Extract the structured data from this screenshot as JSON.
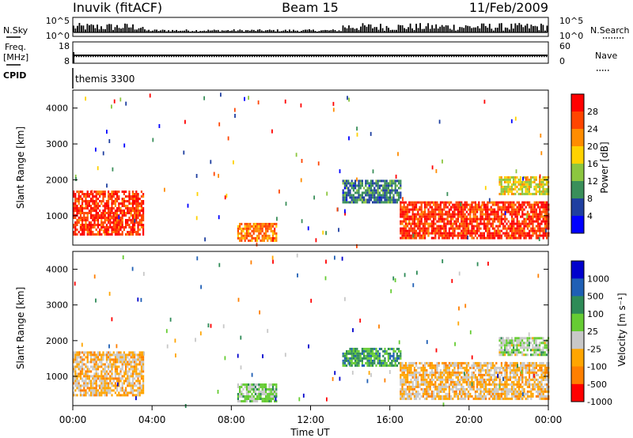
{
  "header": {
    "station": "Inuvik (fitACF)",
    "beam": "Beam 15",
    "date": "11/Feb/2009"
  },
  "summary_panels": {
    "nsky": {
      "label": "N.Sky",
      "ticks": [
        "10^5",
        "10^0"
      ]
    },
    "nsearch": {
      "label": "N.Search",
      "ticks": [
        "10^5",
        "10^0"
      ]
    },
    "freq": {
      "label_top": "Freq.",
      "label_bottom": "[MHz]",
      "ticks": [
        "18",
        "8"
      ]
    },
    "nave": {
      "label": "Nave",
      "ticks": [
        "60",
        "0"
      ]
    },
    "cpid": {
      "label": "CPID",
      "value": "themis 3300"
    }
  },
  "colors": {
    "power_scale": [
      "#0000ff",
      "#1f3fa0",
      "#3a8f5a",
      "#8cc63f",
      "#ffd200",
      "#ff8c00",
      "#ff4500",
      "#ff0000"
    ],
    "velocity_scale": [
      "#0000cc",
      "#1f5fb5",
      "#2e8b57",
      "#66cc33",
      "#c8c8c8",
      "#ffa500",
      "#ff7f00",
      "#ff0000"
    ]
  },
  "chart_data": [
    {
      "type": "heatmap",
      "title": "",
      "xlabel": "",
      "ylabel": "Slant Range [km]",
      "x_ticks": [
        "00:00",
        "04:00",
        "08:00",
        "12:00",
        "16:00",
        "20:00",
        "00:00"
      ],
      "y_ticks": [
        "1000",
        "2000",
        "3000",
        "4000"
      ],
      "ylim": [
        180,
        4500
      ],
      "xlim": [
        0,
        24
      ],
      "colorbar": {
        "label": "Power [dB]",
        "ticks": [
          "4",
          "8",
          "12",
          "16",
          "20",
          "24",
          "28"
        ],
        "range": [
          0,
          30
        ]
      },
      "regions": [
        {
          "t_start": 0.0,
          "t_end": 3.6,
          "r_start": 500,
          "r_end": 1700,
          "value": 26
        },
        {
          "t_start": 8.3,
          "t_end": 10.3,
          "r_start": 300,
          "r_end": 800,
          "value": 22
        },
        {
          "t_start": 13.6,
          "t_end": 16.5,
          "r_start": 1400,
          "r_end": 2000,
          "value": 8
        },
        {
          "t_start": 16.5,
          "t_end": 24.0,
          "r_start": 400,
          "r_end": 1400,
          "value": 26
        },
        {
          "t_start": 21.5,
          "t_end": 24.0,
          "r_start": 1600,
          "r_end": 2100,
          "value": 16
        }
      ]
    },
    {
      "type": "heatmap",
      "title": "",
      "xlabel": "Time UT",
      "ylabel": "Slant Range [km]",
      "x_ticks": [
        "00:00",
        "04:00",
        "08:00",
        "12:00",
        "16:00",
        "20:00",
        "00:00"
      ],
      "y_ticks": [
        "1000",
        "2000",
        "3000",
        "4000"
      ],
      "ylim": [
        180,
        4500
      ],
      "xlim": [
        0,
        24
      ],
      "colorbar": {
        "label": "Velocity [m s⁻¹]",
        "ticks": [
          "1000",
          "500",
          "100",
          "25",
          "-25",
          "-100",
          "-500",
          "-1000"
        ],
        "range": [
          -1000,
          1000
        ]
      },
      "regions": [
        {
          "t_start": 0.0,
          "t_end": 3.6,
          "r_start": 500,
          "r_end": 1700,
          "value": -300
        },
        {
          "t_start": 8.3,
          "t_end": 10.3,
          "r_start": 300,
          "r_end": 800,
          "value": 60
        },
        {
          "t_start": 13.6,
          "t_end": 16.5,
          "r_start": 1300,
          "r_end": 1800,
          "value": 300
        },
        {
          "t_start": 16.5,
          "t_end": 24.0,
          "r_start": 400,
          "r_end": 1400,
          "value": -300
        },
        {
          "t_start": 21.5,
          "t_end": 24.0,
          "r_start": 1600,
          "r_end": 2100,
          "value": 0
        }
      ]
    }
  ]
}
